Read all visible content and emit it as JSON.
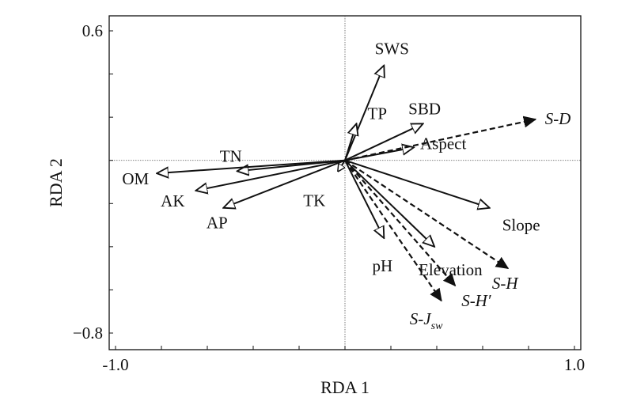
{
  "chart_data": {
    "type": "scatter",
    "subtype": "rda-biplot",
    "xlabel": "RDA 1",
    "ylabel": "RDA 2",
    "xlim": [
      -1.0,
      1.0
    ],
    "ylim": [
      -0.8,
      0.6
    ],
    "x_ticks": [
      {
        "value": -1.0,
        "label": "-1.0"
      },
      {
        "value": 1.0,
        "label": "1.0"
      }
    ],
    "y_ticks": [
      {
        "value": 0.6,
        "label": "0.6"
      },
      {
        "value": -0.8,
        "label": "−0.8"
      }
    ],
    "grid": false,
    "zero_lines": true,
    "series": [
      {
        "name": "",
        "style": "solid, open arrowhead",
        "vectors": [
          {
            "label": "SWS",
            "x": 0.17,
            "y": 0.44
          },
          {
            "label": "SBD",
            "x": 0.34,
            "y": 0.17
          },
          {
            "label": "TP",
            "x": 0.05,
            "y": 0.17
          },
          {
            "label": "Aspect",
            "x": 0.3,
            "y": 0.06
          },
          {
            "label": "TN",
            "x": -0.47,
            "y": -0.05
          },
          {
            "label": "OM",
            "x": -0.82,
            "y": -0.06
          },
          {
            "label": "AK",
            "x": -0.65,
            "y": -0.14
          },
          {
            "label": "AP",
            "x": -0.53,
            "y": -0.22
          },
          {
            "label": "TK",
            "x": -0.03,
            "y": -0.05
          },
          {
            "label": "Slope",
            "x": 0.63,
            "y": -0.22
          },
          {
            "label": "pH",
            "x": 0.17,
            "y": -0.36
          },
          {
            "label": "Elevation",
            "x": 0.39,
            "y": -0.4
          }
        ]
      },
      {
        "name": "",
        "style": "dashed, filled arrowhead",
        "vectors": [
          {
            "label": "S-D",
            "x": 0.83,
            "y": 0.19
          },
          {
            "label": "S-H",
            "x": 0.71,
            "y": -0.5
          },
          {
            "label": "S-H′",
            "x": 0.48,
            "y": -0.58
          },
          {
            "label": "S-J",
            "label_sub": "sw",
            "x": 0.42,
            "y": -0.65
          }
        ]
      }
    ]
  }
}
